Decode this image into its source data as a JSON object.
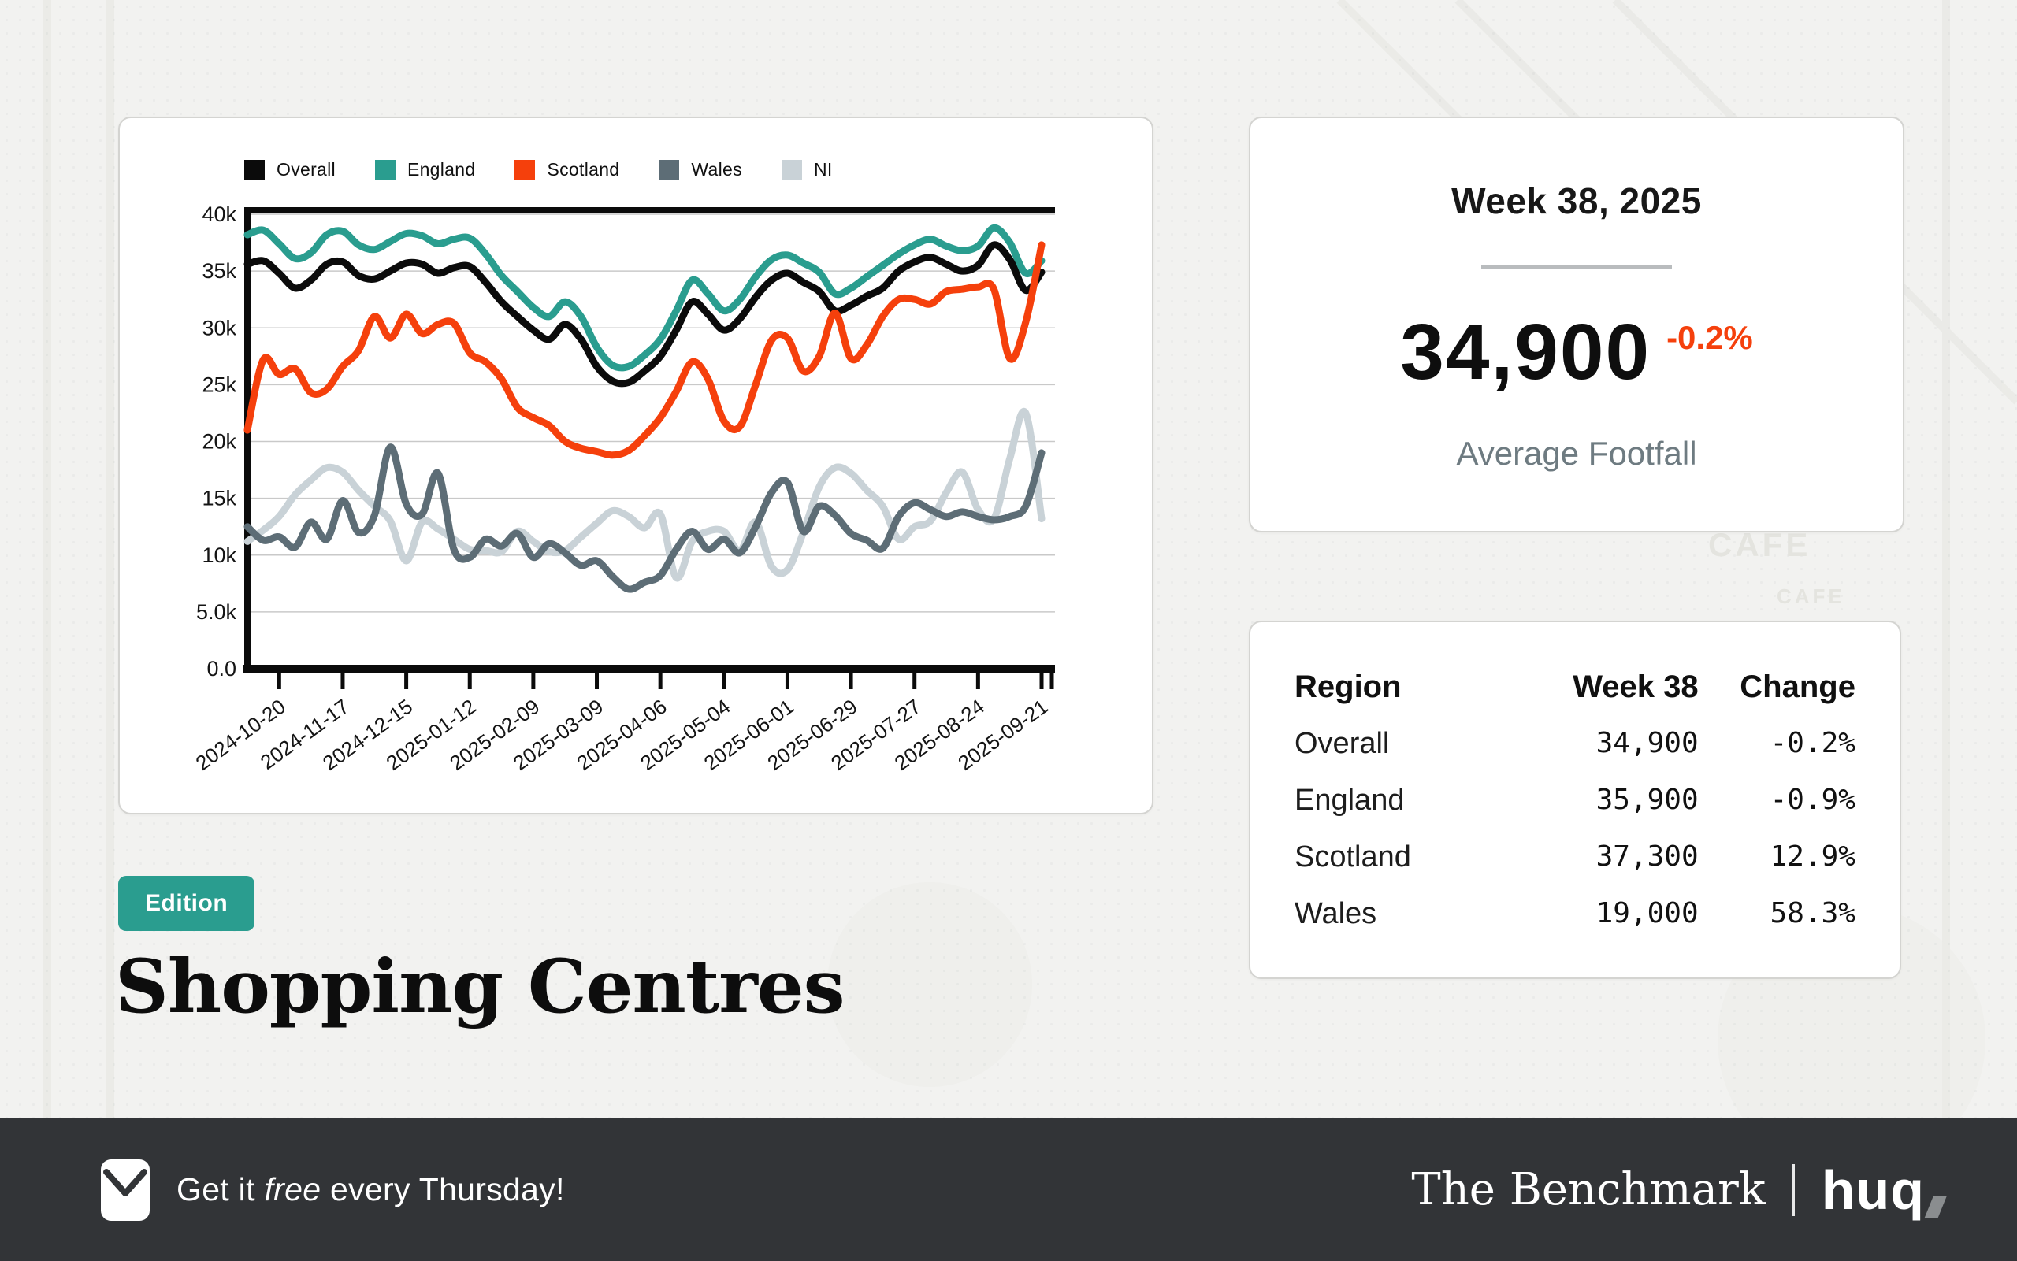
{
  "page_title": "Shopping Centres",
  "edition_badge": {
    "label": "Edition",
    "color": "#2a9d8f"
  },
  "background": {
    "cafe_sign_large": "CAFE",
    "cafe_sign_small": "CAFE"
  },
  "chart_card": {
    "legend": [
      {
        "label": "Overall",
        "color": "#0b0b0b"
      },
      {
        "label": "England",
        "color": "#2a9d8f"
      },
      {
        "label": "Scotland",
        "color": "#f5400c"
      },
      {
        "label": "Wales",
        "color": "#5d6d76"
      },
      {
        "label": "NI",
        "color": "#c9d2d7"
      }
    ]
  },
  "chart_data": {
    "type": "line",
    "title": "",
    "xlabel": "",
    "ylabel": "",
    "ylim": [
      0,
      40000
    ],
    "grid": "horizontal",
    "legend_position": "top",
    "points_per_series": 51,
    "x_unit": "week",
    "y_tick_labels": [
      "0.0",
      "5.0k",
      "10k",
      "15k",
      "20k",
      "25k",
      "30k",
      "35k",
      "40k"
    ],
    "x_tick_labels": [
      "2024-10-20",
      "2024-11-17",
      "2024-12-15",
      "2025-01-12",
      "2025-02-09",
      "2025-03-09",
      "2025-04-06",
      "2025-05-04",
      "2025-06-01",
      "2025-06-29",
      "2025-07-27",
      "2025-08-24",
      "2025-09-21"
    ],
    "x_tick_point_indices": [
      2,
      6,
      10,
      14,
      18,
      22,
      26,
      30,
      34,
      38,
      42,
      46,
      50
    ],
    "series": [
      {
        "name": "Overall",
        "color": "#0b0b0b",
        "values": [
          35600,
          35900,
          34800,
          33500,
          34200,
          35600,
          35800,
          34600,
          34300,
          35000,
          35700,
          35600,
          34800,
          35300,
          35400,
          34000,
          32300,
          31000,
          29800,
          29000,
          30300,
          29000,
          26600,
          25300,
          25200,
          26200,
          27500,
          29800,
          32300,
          31200,
          29800,
          30800,
          32700,
          34200,
          34800,
          34000,
          33200,
          31500,
          32000,
          32800,
          33500,
          35000,
          35800,
          36200,
          35600,
          35000,
          35500,
          37300,
          36000,
          33300,
          34900
        ]
      },
      {
        "name": "England",
        "color": "#2a9d8f",
        "values": [
          38200,
          38600,
          37400,
          36100,
          36600,
          38200,
          38500,
          37300,
          36900,
          37600,
          38300,
          38100,
          37400,
          37800,
          37900,
          36500,
          34600,
          33200,
          31800,
          31000,
          32300,
          31000,
          28300,
          26700,
          26600,
          27600,
          29000,
          31500,
          34200,
          33000,
          31500,
          32500,
          34500,
          36000,
          36400,
          35700,
          34900,
          33000,
          33500,
          34500,
          35500,
          36500,
          37300,
          37800,
          37200,
          36800,
          37200,
          38800,
          37500,
          34800,
          35900
        ]
      },
      {
        "name": "Scotland",
        "color": "#f5400c",
        "values": [
          21000,
          27200,
          25900,
          26400,
          24300,
          24600,
          26600,
          28000,
          31000,
          29100,
          31200,
          29500,
          30300,
          30400,
          27800,
          27000,
          25500,
          23000,
          22100,
          21400,
          20000,
          19400,
          19100,
          18800,
          19200,
          20500,
          22100,
          24400,
          27000,
          25500,
          21800,
          21300,
          25000,
          28900,
          29100,
          26200,
          27500,
          31300,
          27300,
          28500,
          31000,
          32500,
          32500,
          32100,
          33200,
          33400,
          33600,
          33400,
          27300,
          30500,
          37300
        ]
      },
      {
        "name": "Wales",
        "color": "#5d6d76",
        "values": [
          12500,
          11300,
          11600,
          10700,
          12900,
          11400,
          14800,
          12000,
          13500,
          19500,
          14500,
          13600,
          17200,
          10500,
          9800,
          11400,
          10800,
          11900,
          9800,
          11000,
          10200,
          9100,
          9500,
          8100,
          7000,
          7600,
          8200,
          10500,
          12100,
          10500,
          11400,
          10200,
          12500,
          15500,
          16400,
          12100,
          14300,
          13500,
          11900,
          11300,
          10600,
          13400,
          14600,
          14000,
          13400,
          13800,
          13400,
          13100,
          13400,
          14300,
          19000
        ]
      },
      {
        "name": "NI",
        "color": "#c9d2d7",
        "values": [
          11200,
          12200,
          13400,
          15300,
          16600,
          17700,
          17300,
          15700,
          14300,
          13000,
          9500,
          12900,
          12300,
          11400,
          10500,
          10400,
          10300,
          12100,
          11200,
          10300,
          10400,
          11600,
          12800,
          13900,
          13400,
          12400,
          13600,
          8000,
          11200,
          12100,
          12100,
          10400,
          12900,
          9000,
          8700,
          12000,
          16000,
          17700,
          17200,
          15700,
          14300,
          11400,
          12500,
          13000,
          15500,
          17300,
          14000,
          13200,
          18500,
          22500,
          13200
        ]
      }
    ]
  },
  "stats_card": {
    "week_label": "Week 38, 2025",
    "value": "34,900",
    "change": "-0.2%",
    "change_color": "#f5400c",
    "caption": "Average Footfall"
  },
  "table_card": {
    "headers": [
      "Region",
      "Week 38",
      "Change"
    ],
    "rows": [
      {
        "region": "Overall",
        "week38": "34,900",
        "change": "-0.2%"
      },
      {
        "region": "England",
        "week38": "35,900",
        "change": "-0.9%"
      },
      {
        "region": "Scotland",
        "week38": "37,300",
        "change": "12.9%"
      },
      {
        "region": "Wales",
        "week38": "19,000",
        "change": "58.3%"
      }
    ]
  },
  "footer": {
    "cta_prefix": "Get it ",
    "cta_italic": "free",
    "cta_suffix": " every Thursday!",
    "brand": "The Benchmark",
    "logo": "huq"
  }
}
